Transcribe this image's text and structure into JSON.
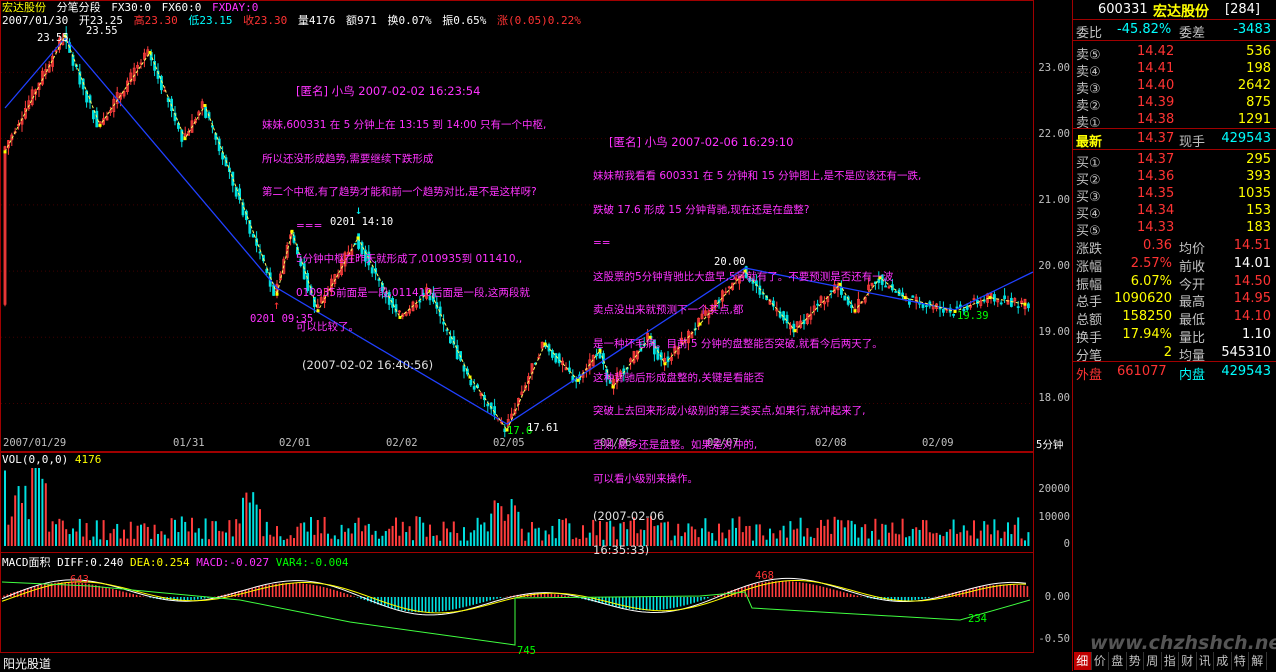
{
  "header": {
    "name": "宏达股份",
    "mode": "分笔分段",
    "fx30": "FX30:0",
    "fx60": "FX60:0",
    "fxday": "FXDAY:0",
    "date": "2007/01/30",
    "open": "开23.25",
    "high": "高23.30",
    "low": "低23.15",
    "close": "收23.30",
    "vol": "量4176",
    "amount": "额971",
    "turnover": "换0.07%",
    "amp": "振0.65%",
    "chg": "涨(0.05)0.22%"
  },
  "price_axis": [
    "23.00",
    "22.00",
    "21.00",
    "20.00",
    "19.00",
    "18.00"
  ],
  "date_axis": [
    "2007/01/29",
    "01/31",
    "02/01",
    "02/02",
    "02/05",
    "02/06",
    "02/07",
    "02/08",
    "02/09"
  ],
  "period": "5分钟",
  "labels": {
    "hi1": "23.55",
    "hi1b": "23.55",
    "low1": "0201 09:35",
    "mark2": "0201 14:10",
    "low2a": "17.6",
    "low2b": "17.61",
    "peak": "20.00",
    "end": "19.39"
  },
  "note1": {
    "title": "[匿名] 小鸟 2007-02-02 16:23:54",
    "lines": [
      "妹妹,600331 在 5 分钟上在 13:15 到 14:00 只有一个中枢,",
      "所以还没形成趋势,需要继续下跌形成",
      "第二个中枢,有了趋势才能和前一个趋势对比,是不是这样呀?",
      "===",
      "5分钟中枢在昨天就形成了,010935到 011410,,",
      "010935前面是一段,011410后面是一段,这两段就",
      "可以比较了。"
    ],
    "reply_time": "(2007-02-02 16:40:56)"
  },
  "note2": {
    "title": "[匿名] 小鸟 2007-02-06 16:29:10",
    "lines": [
      "妹妹帮我看看 600331 在 5 分钟和 15 分钟图上,是不是应该还有一跌,",
      "跌破 17.6 形成 15 分钟背驰,现在还是在盘整?",
      "==",
      "这股票的5分钟背驰比大盘早,5号就有了。不要预测是否还有一波",
      "卖点没出来就预测下一个买点,都",
      "是一种坏毛病。目前 5 分钟的盘整能否突破,就看今后两天了。",
      "这种背驰后形成盘整的,关键是看能否",
      "突破上去回来形成小级别的第三类买点,如果行,就冲起来了,",
      "否则,最多还是盘整。如果是对冲的,",
      "可以看小级别来操作。"
    ],
    "reply_time1": "(2007-02-06",
    "reply_time2": "16:35:33)"
  },
  "vol_panel": {
    "title": "VOL(0,0,0)",
    "value": "4176",
    "ticks": [
      "20000",
      "10000",
      "0"
    ]
  },
  "macd_panel": {
    "title": "MACD面积",
    "diff": "DIFF:0.240",
    "dea": "DEA:0.254",
    "macd": "MACD:-0.027",
    "var4": "VAR4:-0.004",
    "ticks": [
      "0.00",
      "-0.50"
    ],
    "lab1": "643",
    "lab2": "745",
    "lab3": "468",
    "lab4": "234"
  },
  "footer_left": "阳光股道",
  "watermark": "www.chzhshch.net",
  "side": {
    "code": "600331",
    "name": "宏达股份",
    "count": "[284]",
    "weibi_label": "委比",
    "weibi": "-45.82%",
    "weicha_label": "委差",
    "weicha": "-3483",
    "asks": [
      {
        "label": "卖⑤",
        "price": "14.42",
        "vol": "536"
      },
      {
        "label": "卖④",
        "price": "14.41",
        "vol": "198"
      },
      {
        "label": "卖③",
        "price": "14.40",
        "vol": "2642"
      },
      {
        "label": "卖②",
        "price": "14.39",
        "vol": "875"
      },
      {
        "label": "卖①",
        "price": "14.38",
        "vol": "1291"
      }
    ],
    "last_label": "最新",
    "last": "14.37",
    "hand_label": "现手",
    "hand": "429543",
    "bids": [
      {
        "label": "买①",
        "price": "14.37",
        "vol": "295"
      },
      {
        "label": "买②",
        "price": "14.36",
        "vol": "393"
      },
      {
        "label": "买③",
        "price": "14.35",
        "vol": "1035"
      },
      {
        "label": "买④",
        "price": "14.34",
        "vol": "153"
      },
      {
        "label": "买⑤",
        "price": "14.33",
        "vol": "183"
      }
    ],
    "stats": [
      {
        "l1": "涨跌",
        "v1": "0.36",
        "l2": "均价",
        "v2": "14.51"
      },
      {
        "l1": "涨幅",
        "v1": "2.57%",
        "l2": "前收",
        "v2": "14.01"
      },
      {
        "l1": "振幅",
        "v1": "6.07%",
        "l2": "今开",
        "v2": "14.50"
      },
      {
        "l1": "总手",
        "v1": "1090620",
        "l2": "最高",
        "v2": "14.95"
      },
      {
        "l1": "总额",
        "v1": "158250",
        "l2": "最低",
        "v2": "14.10"
      },
      {
        "l1": "换手",
        "v1": "17.94%",
        "l2": "量比",
        "v2": "1.10"
      },
      {
        "l1": "分笔",
        "v1": "2",
        "l2": "均量",
        "v2": "545310"
      }
    ],
    "wai_label": "外盘",
    "wai": "661077",
    "nei_label": "内盘",
    "nei": "429543",
    "tabs": [
      "细",
      "价",
      "盘",
      "势",
      "周",
      "指",
      "财",
      "讯",
      "成",
      "特",
      "解"
    ]
  },
  "chart_data": {
    "type": "candlestick",
    "price_range": [
      17.6,
      23.55
    ],
    "bi_points": [
      {
        "date": "01/29",
        "price": 21.8
      },
      {
        "date": "01/30",
        "price": 23.55
      },
      {
        "date": "02/01 09:35",
        "price": 19.65
      },
      {
        "date": "02/01 14:10",
        "price": 20.5
      },
      {
        "date": "02/05",
        "price": 17.6
      },
      {
        "date": "02/07",
        "price": 20.0
      },
      {
        "date": "02/09",
        "price": 19.39
      }
    ]
  }
}
